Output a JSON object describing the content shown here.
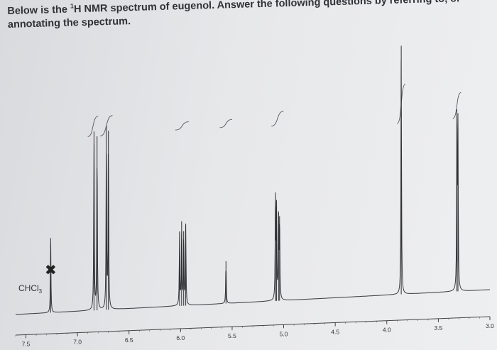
{
  "question": {
    "part1": "Below is the ",
    "superscript": "1",
    "part2": "H NMR spectrum of eugenol. Answer the following questions by referring to, or annotating the spectrum."
  },
  "chart_data": {
    "type": "line",
    "title": "",
    "xlabel": "",
    "ylabel": "",
    "x_unit": "ppm",
    "x_axis_reversed": true,
    "xlim": [
      7.6,
      3.0
    ],
    "x_ticks": [
      "7.5",
      "7.0",
      "6.5",
      "6.0",
      "5.5",
      "5.0",
      "4.5",
      "4.0",
      "3.5",
      "3.0"
    ],
    "annotations": [
      {
        "label": "CHCl3",
        "label_main": "CHCl",
        "label_sub": "3",
        "x": 7.26,
        "marker": "✖"
      }
    ],
    "peaks": [
      {
        "x": 7.26,
        "height": 0.3
      },
      {
        "x": 6.84,
        "height": 0.72
      },
      {
        "x": 6.81,
        "height": 0.7
      },
      {
        "x": 6.72,
        "height": 0.74
      },
      {
        "x": 6.7,
        "height": 0.72
      },
      {
        "x": 6.01,
        "height": 0.3
      },
      {
        "x": 5.99,
        "height": 0.34
      },
      {
        "x": 5.97,
        "height": 0.3
      },
      {
        "x": 5.95,
        "height": 0.33
      },
      {
        "x": 5.56,
        "height": 0.17
      },
      {
        "x": 5.08,
        "height": 0.4
      },
      {
        "x": 5.07,
        "height": 0.38
      },
      {
        "x": 5.05,
        "height": 0.36
      },
      {
        "x": 5.04,
        "height": 0.34
      },
      {
        "x": 3.86,
        "height": 1.0
      },
      {
        "x": 3.32,
        "height": 0.68
      },
      {
        "x": 3.31,
        "height": 0.66
      }
    ],
    "integrals": [
      {
        "from": 6.9,
        "to": 6.8,
        "rise": 0.3
      },
      {
        "from": 6.78,
        "to": 6.66,
        "rise": 0.3
      },
      {
        "from": 6.05,
        "to": 5.92,
        "rise": 0.12
      },
      {
        "from": 5.62,
        "to": 5.5,
        "rise": 0.12
      },
      {
        "from": 5.12,
        "to": 5.0,
        "rise": 0.22
      },
      {
        "from": 3.9,
        "to": 3.82,
        "rise": 0.58
      },
      {
        "from": 3.36,
        "to": 3.28,
        "rise": 0.38
      }
    ]
  }
}
